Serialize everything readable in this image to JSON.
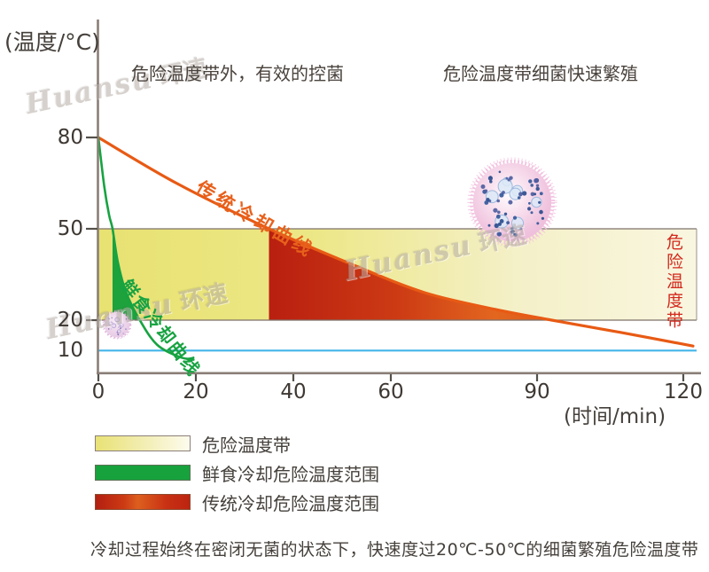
{
  "header": {
    "left_note": "危险温度带外，有效的控菌",
    "right_note": "危险温度带细菌快速繁殖"
  },
  "watermark": {
    "latin": "Huansu",
    "chinese": "环速"
  },
  "zone_side_label": "危险温度带",
  "legend": {
    "items": [
      {
        "label": "危险温度带",
        "swatch": "yellow-gradient"
      },
      {
        "label": "鲜食冷却危险温度范围",
        "swatch": "green"
      },
      {
        "label": "传统冷却危险温度范围",
        "swatch": "red-gradient"
      }
    ]
  },
  "caption": "冷却过程始终在密闭无菌的状态下，快速度过20℃-50℃的细菌繁殖危险温度带",
  "colors": {
    "text": "#45403b",
    "axis": "#8a7e76",
    "tick": "#55504a",
    "band_border": "#7d7269",
    "band_gradient": [
      "#e8e272",
      "#ece785",
      "#f4f0c8",
      "#f9f6e0"
    ],
    "red_fill_gradient": [
      "#b91f10",
      "#cc3a14",
      "#e3661f",
      "#db5a1a"
    ],
    "fresh_fill": "#1da23c",
    "blue_line": "#44b5e8",
    "zone_label_red": "#d3281c",
    "bacteria_body": "#eebcd9",
    "bacteria_dots": "#2c4d8e",
    "watermark": "#b5aca6"
  },
  "chart_data": {
    "type": "line",
    "xlabel": "(时间/min)",
    "ylabel": "(温度/°C)",
    "xlim": [
      0,
      123
    ],
    "ylim": [
      5,
      85
    ],
    "grid": false,
    "x_ticks": [
      0,
      20,
      40,
      60,
      90,
      120
    ],
    "y_ticks": [
      {
        "value": 80,
        "dash": true
      },
      {
        "value": 50,
        "dash": true
      },
      {
        "value": 20,
        "dash": true
      },
      {
        "value": 10,
        "dash": false
      }
    ],
    "danger_zone": {
      "from": 20,
      "to": 50,
      "label": "危险温度带"
    },
    "baseline_temp": 10,
    "series": [
      {
        "name": "传统冷却曲线",
        "color": "#e85a14",
        "band_fill": "red-gradient",
        "points": [
          [
            0,
            80
          ],
          [
            16,
            65
          ],
          [
            35,
            50
          ],
          [
            52.5,
            38
          ],
          [
            67,
            29
          ],
          [
            81.5,
            23.5
          ],
          [
            93,
            20
          ],
          [
            107,
            16
          ],
          [
            122,
            11.5
          ]
        ]
      },
      {
        "name": "鲜食冷却曲线",
        "color": "#17a341",
        "band_fill": "green",
        "points": [
          [
            0,
            80
          ],
          [
            1.2,
            64
          ],
          [
            2.2,
            54.5
          ],
          [
            2.9,
            50
          ],
          [
            4,
            39
          ],
          [
            5.6,
            29.5
          ],
          [
            8.5,
            20
          ],
          [
            12,
            12
          ],
          [
            16.5,
            8
          ],
          [
            19.5,
            7
          ]
        ]
      }
    ]
  }
}
